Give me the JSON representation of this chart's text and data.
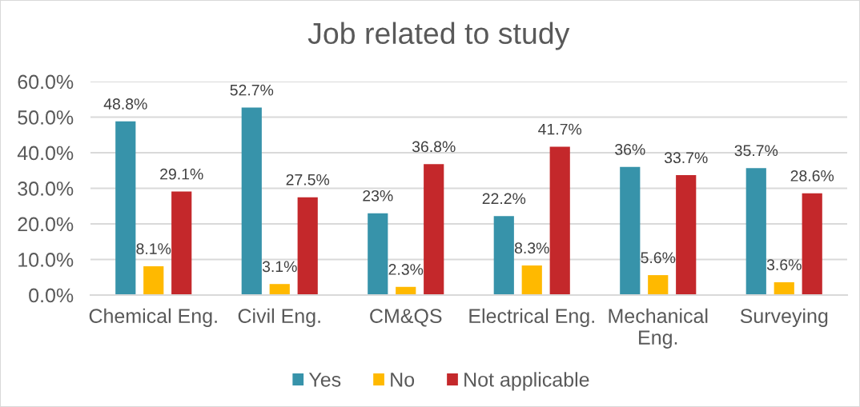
{
  "chart_data": {
    "type": "bar",
    "title": "Job related to study",
    "categories": [
      "Chemical Eng.",
      "Civil Eng.",
      "CM&QS",
      "Electrical Eng.",
      "Mechanical Eng.",
      "Surveying"
    ],
    "series": [
      {
        "name": "Yes",
        "color": "#3793aa",
        "values": [
          48.8,
          52.7,
          23,
          22.2,
          36,
          35.7
        ],
        "value_labels": [
          "48.8%",
          "52.7%",
          "23%",
          "22.2%",
          "36%",
          "35.7%"
        ]
      },
      {
        "name": "No",
        "color": "#ffb900",
        "values": [
          8.1,
          3.1,
          2.3,
          8.3,
          5.6,
          3.6
        ],
        "value_labels": [
          "8.1%",
          "3.1%",
          "2.3%",
          "8.3%",
          "5.6%",
          "3.6%"
        ]
      },
      {
        "name": "Not applicable",
        "color": "#c4282b",
        "values": [
          29.1,
          27.5,
          36.8,
          41.7,
          33.7,
          28.6
        ],
        "value_labels": [
          "29.1%",
          "27.5%",
          "36.8%",
          "41.7%",
          "33.7%",
          "28.6%"
        ]
      }
    ],
    "ylim": [
      0,
      60
    ],
    "yticks": [
      {
        "value": 0,
        "label": "0.0%"
      },
      {
        "value": 10,
        "label": "10.0%"
      },
      {
        "value": 20,
        "label": "20.0%"
      },
      {
        "value": 30,
        "label": "30.0%"
      },
      {
        "value": 40,
        "label": "40.0%"
      },
      {
        "value": 50,
        "label": "50.0%"
      },
      {
        "value": 60,
        "label": "60.0%"
      }
    ],
    "grid": "y",
    "legend": "bottom"
  }
}
